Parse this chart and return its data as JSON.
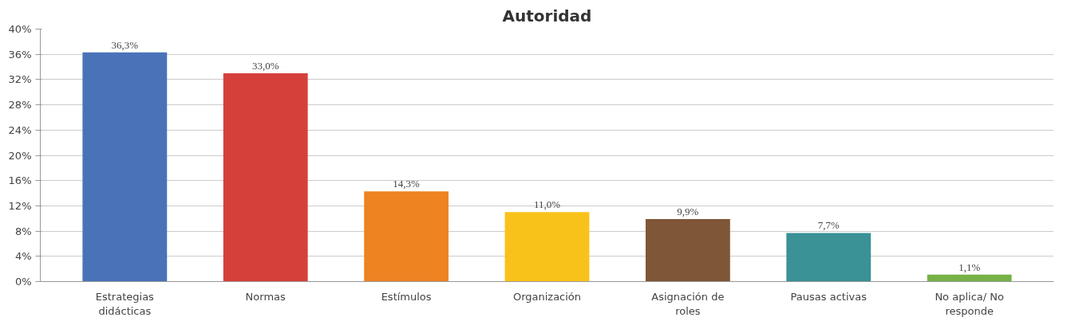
{
  "chart_data": {
    "type": "bar",
    "title": "Autoridad",
    "categories": [
      "Estrategias didácticas",
      "Normas",
      "Estímulos",
      "Organización",
      "Asignación de roles",
      "Pausas activas",
      "No aplica/ No responde"
    ],
    "values": [
      36.3,
      33.0,
      14.3,
      11.0,
      9.9,
      7.7,
      1.1
    ],
    "value_labels": [
      "36,3%",
      "33,0%",
      "14,3%",
      "11,0%",
      "9,9%",
      "7,7%",
      "1,1%"
    ],
    "colors": [
      "#4a72b8",
      "#d6403a",
      "#ee8322",
      "#f9c21a",
      "#7f5637",
      "#3a9196",
      "#77b147"
    ],
    "ylim": [
      0,
      40
    ],
    "yticks": [
      {
        "value": 0,
        "label": "0%"
      },
      {
        "value": 4,
        "label": "4%"
      },
      {
        "value": 8,
        "label": "8%"
      },
      {
        "value": 12,
        "label": "12%"
      },
      {
        "value": 16,
        "label": "16%"
      },
      {
        "value": 20,
        "label": "20%"
      },
      {
        "value": 24,
        "label": "24%"
      },
      {
        "value": 28,
        "label": "28%"
      },
      {
        "value": 32,
        "label": "32%"
      },
      {
        "value": 36,
        "label": "36%"
      },
      {
        "value": 40,
        "label": "40%"
      }
    ],
    "grid": "y"
  }
}
